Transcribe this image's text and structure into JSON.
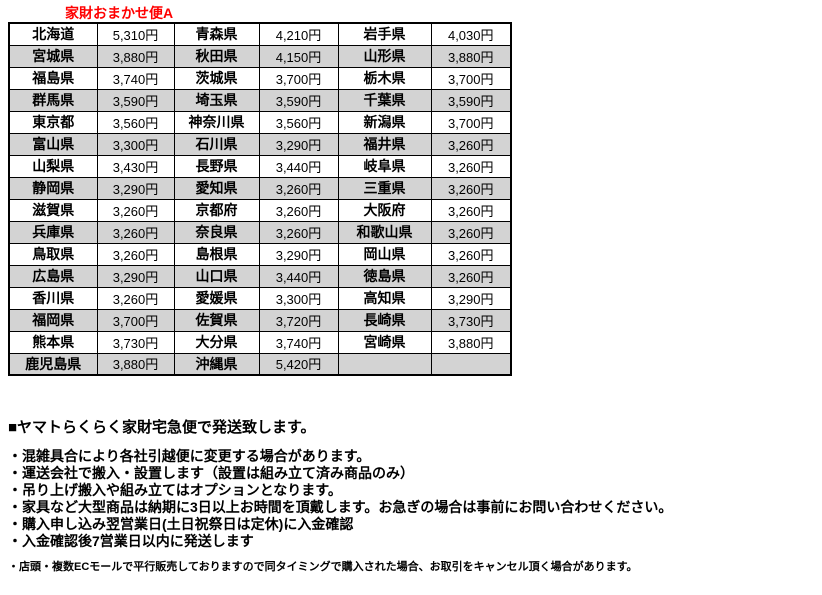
{
  "title": {
    "label": "家財おまかせ便A",
    "color": "#ff0000"
  },
  "table": {
    "row_alt_color": "#d3d3d3",
    "currency_suffix": "円",
    "rows": [
      {
        "shaded": false,
        "cells": [
          {
            "pref": "北海道",
            "price": "5,310円"
          },
          {
            "pref": "青森県",
            "price": "4,210円"
          },
          {
            "pref": "岩手県",
            "price": "4,030円"
          }
        ]
      },
      {
        "shaded": true,
        "cells": [
          {
            "pref": "宮城県",
            "price": "3,880円"
          },
          {
            "pref": "秋田県",
            "price": "4,150円"
          },
          {
            "pref": "山形県",
            "price": "3,880円"
          }
        ]
      },
      {
        "shaded": false,
        "cells": [
          {
            "pref": "福島県",
            "price": "3,740円"
          },
          {
            "pref": "茨城県",
            "price": "3,700円"
          },
          {
            "pref": "栃木県",
            "price": "3,700円"
          }
        ]
      },
      {
        "shaded": true,
        "cells": [
          {
            "pref": "群馬県",
            "price": "3,590円"
          },
          {
            "pref": "埼玉県",
            "price": "3,590円"
          },
          {
            "pref": "千葉県",
            "price": "3,590円"
          }
        ]
      },
      {
        "shaded": false,
        "cells": [
          {
            "pref": "東京都",
            "price": "3,560円"
          },
          {
            "pref": "神奈川県",
            "price": "3,560円"
          },
          {
            "pref": "新潟県",
            "price": "3,700円"
          }
        ]
      },
      {
        "shaded": true,
        "cells": [
          {
            "pref": "富山県",
            "price": "3,300円"
          },
          {
            "pref": "石川県",
            "price": "3,290円"
          },
          {
            "pref": "福井県",
            "price": "3,260円"
          }
        ]
      },
      {
        "shaded": false,
        "cells": [
          {
            "pref": "山梨県",
            "price": "3,430円"
          },
          {
            "pref": "長野県",
            "price": "3,440円"
          },
          {
            "pref": "岐阜県",
            "price": "3,260円"
          }
        ]
      },
      {
        "shaded": true,
        "cells": [
          {
            "pref": "静岡県",
            "price": "3,290円"
          },
          {
            "pref": "愛知県",
            "price": "3,260円"
          },
          {
            "pref": "三重県",
            "price": "3,260円"
          }
        ]
      },
      {
        "shaded": false,
        "cells": [
          {
            "pref": "滋賀県",
            "price": "3,260円"
          },
          {
            "pref": "京都府",
            "price": "3,260円"
          },
          {
            "pref": "大阪府",
            "price": "3,260円"
          }
        ]
      },
      {
        "shaded": true,
        "cells": [
          {
            "pref": "兵庫県",
            "price": "3,260円"
          },
          {
            "pref": "奈良県",
            "price": "3,260円"
          },
          {
            "pref": "和歌山県",
            "price": "3,260円"
          }
        ]
      },
      {
        "shaded": false,
        "cells": [
          {
            "pref": "鳥取県",
            "price": "3,260円"
          },
          {
            "pref": "島根県",
            "price": "3,290円"
          },
          {
            "pref": "岡山県",
            "price": "3,260円"
          }
        ]
      },
      {
        "shaded": true,
        "cells": [
          {
            "pref": "広島県",
            "price": "3,290円"
          },
          {
            "pref": "山口県",
            "price": "3,440円"
          },
          {
            "pref": "徳島県",
            "price": "3,260円"
          }
        ]
      },
      {
        "shaded": false,
        "cells": [
          {
            "pref": "香川県",
            "price": "3,260円"
          },
          {
            "pref": "愛媛県",
            "price": "3,300円"
          },
          {
            "pref": "高知県",
            "price": "3,290円"
          }
        ]
      },
      {
        "shaded": true,
        "cells": [
          {
            "pref": "福岡県",
            "price": "3,700円"
          },
          {
            "pref": "佐賀県",
            "price": "3,720円"
          },
          {
            "pref": "長崎県",
            "price": "3,730円"
          }
        ]
      },
      {
        "shaded": false,
        "cells": [
          {
            "pref": "熊本県",
            "price": "3,730円"
          },
          {
            "pref": "大分県",
            "price": "3,740円"
          },
          {
            "pref": "宮崎県",
            "price": "3,880円"
          }
        ]
      },
      {
        "shaded": true,
        "cells": [
          {
            "pref": "鹿児島県",
            "price": "3,880円"
          },
          {
            "pref": "沖縄県",
            "price": "5,420円"
          },
          {
            "pref": "",
            "price": ""
          }
        ]
      }
    ]
  },
  "notes": {
    "headline": "■ヤマトらくらく家財宅急便で発送致します。",
    "bullets": [
      "・混雑具合により各社引越便に変更する場合があります。",
      "・運送会社で搬入・設置します（設置は組み立て済み商品のみ）",
      "・吊り上げ搬入や組み立てはオプションとなります。",
      "・家具など大型商品は納期に3日以上お時間を頂戴します。お急ぎの場合は事前にお問い合わせください。",
      "・購入申し込み翌営業日(土日祝祭日は定休)に入金確認",
      "・入金確認後7営業日以内に発送します"
    ],
    "small_note": "・店頭・複数ECモールで平行販売しておりますので同タイミングで購入された場合、お取引をキャンセル頂く場合があります。"
  }
}
